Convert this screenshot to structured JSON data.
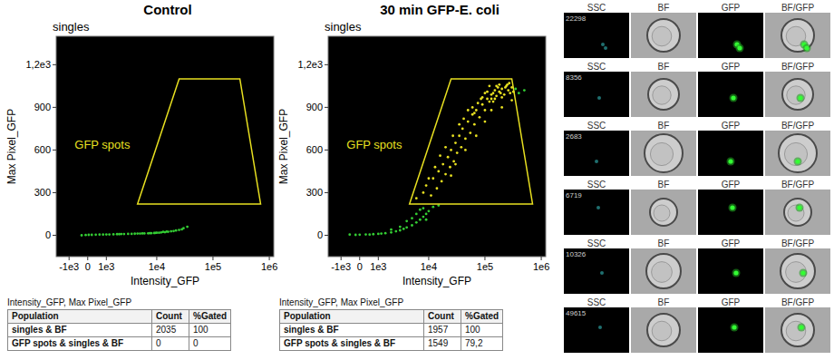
{
  "chart_data": [
    {
      "type": "scatter",
      "title": "Control",
      "subtitle": "singles",
      "x_label": "Intensity_GFP",
      "y_label": "Max Pixel_GFP",
      "x": [
        -300,
        -100,
        50,
        200,
        400,
        600,
        800,
        1000,
        1200,
        1500,
        1800,
        2000,
        2200,
        2500,
        3000,
        3500,
        4000,
        4500,
        5000,
        5500,
        6000,
        7000,
        7500,
        8000,
        9000,
        9500,
        10000,
        11000,
        12000,
        13000,
        14000,
        15000,
        16000,
        18000,
        20000,
        22000,
        25000,
        28000,
        30000,
        35000
      ],
      "values": [
        0,
        2,
        3,
        3,
        4,
        5,
        5,
        6,
        6,
        7,
        8,
        8,
        9,
        9,
        10,
        10,
        11,
        12,
        12,
        13,
        13,
        14,
        15,
        15,
        16,
        17,
        18,
        18,
        20,
        24,
        22,
        26,
        25,
        28,
        30,
        34,
        38,
        42,
        50,
        60
      ],
      "color": "#33cc33",
      "xlim": [
        -2000,
        1200000
      ],
      "ylim": [
        -150,
        1400
      ],
      "log": "x",
      "xticks": [
        {
          "value": -1000,
          "label": "-1e3"
        },
        0,
        {
          "value": 1000,
          "label": "1e3"
        },
        {
          "value": 10000,
          "label": "1e4"
        },
        {
          "value": 100000,
          "label": "1e5"
        },
        {
          "value": 1000000,
          "label": "1e6"
        }
      ],
      "yticks": [
        0,
        300,
        600,
        900,
        {
          "value": 1200,
          "label": "1,2e3"
        }
      ],
      "gate": {
        "label": "GFP spots",
        "x": [
          4500,
          25000,
          300000,
          700000
        ],
        "y": [
          220,
          1100,
          1100,
          220
        ],
        "color": "#e8e020"
      }
    },
    {
      "type": "scatter",
      "title": "30 min GFP-E. coli",
      "subtitle": "singles",
      "x_label": "Intensity_GFP",
      "y_label": "Max Pixel_GFP",
      "x": [
        -500,
        -200,
        0,
        300,
        500,
        700,
        1000,
        1200,
        1500,
        2000,
        2000,
        2500,
        3000,
        3000,
        3500,
        4000,
        4000,
        5000,
        5000,
        6000,
        6000,
        7000,
        7000,
        8000,
        8000,
        9000,
        9000,
        10000,
        12000,
        15000,
        6000,
        8000,
        9000,
        10000,
        11000,
        12000,
        13000,
        14000,
        15000,
        16000,
        17000,
        18000,
        20000,
        20000,
        22000,
        24000,
        25000,
        25000,
        27000,
        28000,
        30000,
        30000,
        32000,
        35000,
        35000,
        38000,
        40000,
        42000,
        45000,
        45000,
        50000,
        50000,
        55000,
        60000,
        60000,
        65000,
        70000,
        70000,
        75000,
        80000,
        90000,
        90000,
        100000,
        100000,
        100000,
        110000,
        120000,
        120000,
        130000,
        130000,
        140000,
        140000,
        150000,
        150000,
        160000,
        170000,
        180000,
        180000,
        200000,
        200000,
        200000,
        220000,
        240000,
        250000,
        260000,
        280000,
        300000,
        300000,
        320000,
        350000,
        400000,
        500000,
        110000,
        160000,
        230000,
        270000,
        190000,
        130000,
        85000,
        65000
      ],
      "values": [
        5,
        3,
        4,
        6,
        5,
        8,
        10,
        12,
        15,
        20,
        40,
        28,
        35,
        60,
        45,
        55,
        100,
        70,
        120,
        90,
        150,
        110,
        180,
        130,
        190,
        150,
        110,
        170,
        200,
        210,
        260,
        300,
        350,
        400,
        280,
        400,
        480,
        330,
        450,
        560,
        380,
        500,
        430,
        620,
        550,
        480,
        600,
        420,
        700,
        520,
        650,
        500,
        580,
        700,
        780,
        620,
        750,
        820,
        680,
        600,
        800,
        880,
        720,
        850,
        900,
        780,
        880,
        700,
        930,
        830,
        920,
        970,
        880,
        1000,
        800,
        960,
        940,
        1050,
        990,
        880,
        1000,
        940,
        1020,
        960,
        980,
        1040,
        1010,
        1060,
        1030,
        970,
        900,
        990,
        1050,
        1060,
        1020,
        1000,
        1040,
        950,
        1010,
        1030,
        1000,
        1020,
        1010,
        1050,
        1040,
        1070,
        1000,
        960,
        960,
        860
      ],
      "color": "#33cc33",
      "xlim": [
        -2000,
        1200000
      ],
      "ylim": [
        -150,
        1400
      ],
      "log": "x",
      "xticks": [
        {
          "value": -1000,
          "label": "-1e3"
        },
        0,
        {
          "value": 1000,
          "label": "1e3"
        },
        {
          "value": 10000,
          "label": "1e4"
        },
        {
          "value": 100000,
          "label": "1e5"
        },
        {
          "value": 1000000,
          "label": "1e6"
        }
      ],
      "yticks": [
        0,
        300,
        600,
        900,
        {
          "value": 1200,
          "label": "1,2e3"
        }
      ],
      "gate": {
        "label": "GFP spots",
        "x": [
          4500,
          25000,
          300000,
          700000
        ],
        "y": [
          220,
          1100,
          1100,
          220
        ],
        "color": "#e8e020"
      }
    }
  ],
  "tables": [
    {
      "caption": "Intensity_GFP, Max Pixel_GFP",
      "columns": [
        "Population",
        "Count",
        "%Gated"
      ],
      "rows": [
        [
          "singles & BF",
          2035,
          100
        ],
        [
          "GFP spots & singles & BF",
          0,
          0
        ]
      ]
    },
    {
      "caption": "Intensity_GFP, Max Pixel_GFP",
      "columns": [
        "Population",
        "Count",
        "%Gated"
      ],
      "rows": [
        [
          "singles & BF",
          1957,
          100
        ],
        [
          "GFP spots & singles & BF",
          1549,
          "79,2"
        ]
      ]
    }
  ],
  "gallery": {
    "headers": [
      "SSC",
      "BF",
      "GFP",
      "BF/GFP"
    ],
    "ssc_values": [
      22298,
      8356,
      2683,
      6719,
      10326,
      49615
    ]
  }
}
